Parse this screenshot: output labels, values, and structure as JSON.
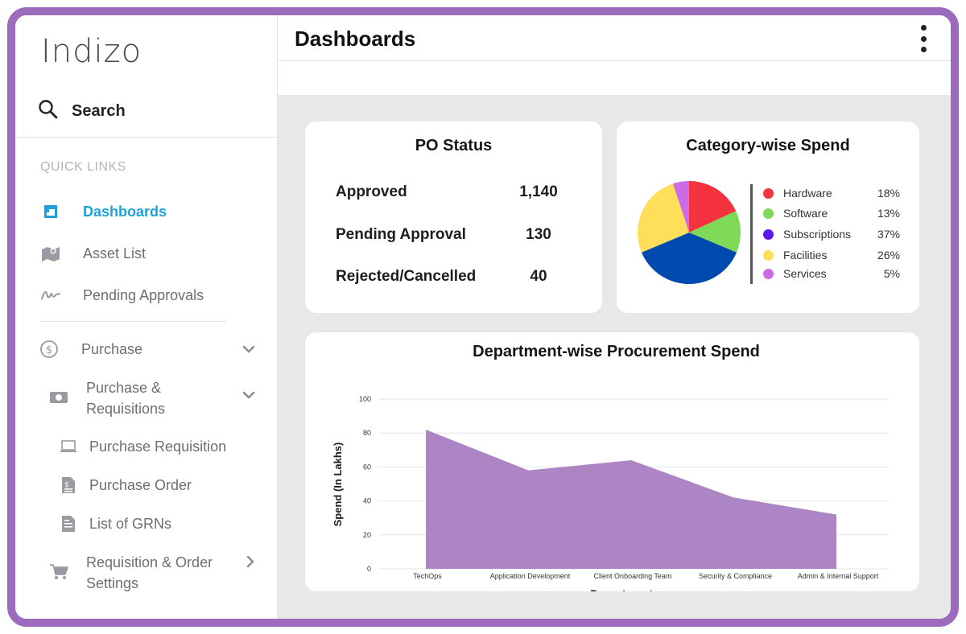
{
  "brand": {
    "logo_text": "Indizo"
  },
  "sidebar": {
    "search_label": "Search",
    "quick_links_label": "QUICK LINKS",
    "items": [
      {
        "label": "Dashboards",
        "icon": "dashboard-icon"
      },
      {
        "label": "Asset List",
        "icon": "map-icon"
      },
      {
        "label": "Pending Approvals",
        "icon": "signature-icon"
      },
      {
        "label": "Purchase",
        "icon": "dollar-circle-icon"
      },
      {
        "label": "Purchase &",
        "label2": "Requisitions",
        "icon": "wallet-icon"
      },
      {
        "label": "Purchase Requisition",
        "icon": "laptop-icon"
      },
      {
        "label": "Purchase Order",
        "icon": "invoice-icon"
      },
      {
        "label": "List of GRNs",
        "icon": "document-icon"
      },
      {
        "label": "Requisition & Order",
        "label2": "Settings",
        "icon": "cart-icon"
      }
    ]
  },
  "header": {
    "title": "Dashboards"
  },
  "po_status": {
    "title": "PO Status",
    "rows": [
      {
        "label": "Approved",
        "value": "1,140"
      },
      {
        "label": "Pending Approval",
        "value": "130"
      },
      {
        "label": "Rejected/Cancelled",
        "value": "40"
      }
    ]
  },
  "category_spend": {
    "title": "Category-wise Spend",
    "legend": [
      {
        "label": "Hardware",
        "pct": "18%",
        "color": "#f5333f"
      },
      {
        "label": "Software",
        "pct": "13%",
        "color": "#7ed957"
      },
      {
        "label": "Subscriptions",
        "pct": "37%",
        "color": "#5e17eb"
      },
      {
        "label": "Facilities",
        "pct": "26%",
        "color": "#ffde59"
      },
      {
        "label": "Services",
        "pct": "5%",
        "color": "#cb6ce6"
      }
    ]
  },
  "chart_data": [
    {
      "type": "pie",
      "title": "Category-wise Spend",
      "slices": [
        {
          "label": "Hardware",
          "value": 18,
          "color": "#f5333f"
        },
        {
          "label": "Software",
          "value": 13,
          "color": "#7ed957"
        },
        {
          "label": "Subscriptions",
          "value": 37,
          "color": "#004aad"
        },
        {
          "label": "Facilities",
          "value": 26,
          "color": "#ffde59"
        },
        {
          "label": "Services",
          "value": 5,
          "color": "#cb6ce6"
        }
      ]
    },
    {
      "type": "area",
      "title": "Department-wise Procurement Spend",
      "xlabel": "Department",
      "ylabel": "Spend (In Lakhs)",
      "categories": [
        "TechOps",
        "Application Development",
        "Client Onboarding Team",
        "Security & Compliance",
        "Admin & Internal Support"
      ],
      "values": [
        82,
        58,
        64,
        42,
        32
      ],
      "ylim": [
        0,
        100
      ],
      "yticks": [
        0,
        20,
        40,
        60,
        80,
        100
      ],
      "color": "#ad85c4",
      "grid": true
    }
  ]
}
